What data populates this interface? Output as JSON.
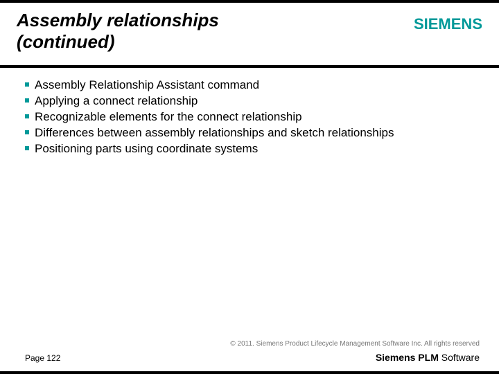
{
  "colors": {
    "accent": "#009999",
    "background": "#ffffff",
    "text": "#000000",
    "muted": "#777777",
    "outer": "#000000"
  },
  "typography": {
    "title_fontsize": 26,
    "title_style": "italic bold",
    "body_fontsize": 17,
    "footer_fontsize": 12,
    "copyright_fontsize": 10,
    "logo_fontsize": 22
  },
  "header": {
    "title_line1": "Assembly relationships",
    "title_line2": "(continued)",
    "logo_text": "SIEMENS"
  },
  "bullets": {
    "items": [
      "Assembly Relationship Assistant command",
      "Applying a connect relationship",
      "Recognizable elements for the connect relationship",
      "Differences between assembly relationships and sketch relationships",
      "Positioning parts using coordinate systems"
    ]
  },
  "footer": {
    "copyright": "© 2011. Siemens Product Lifecycle Management Software Inc. All rights reserved",
    "page_label": "Page 122",
    "brand_bold": "Siemens PLM",
    "brand_rest": " Software"
  }
}
